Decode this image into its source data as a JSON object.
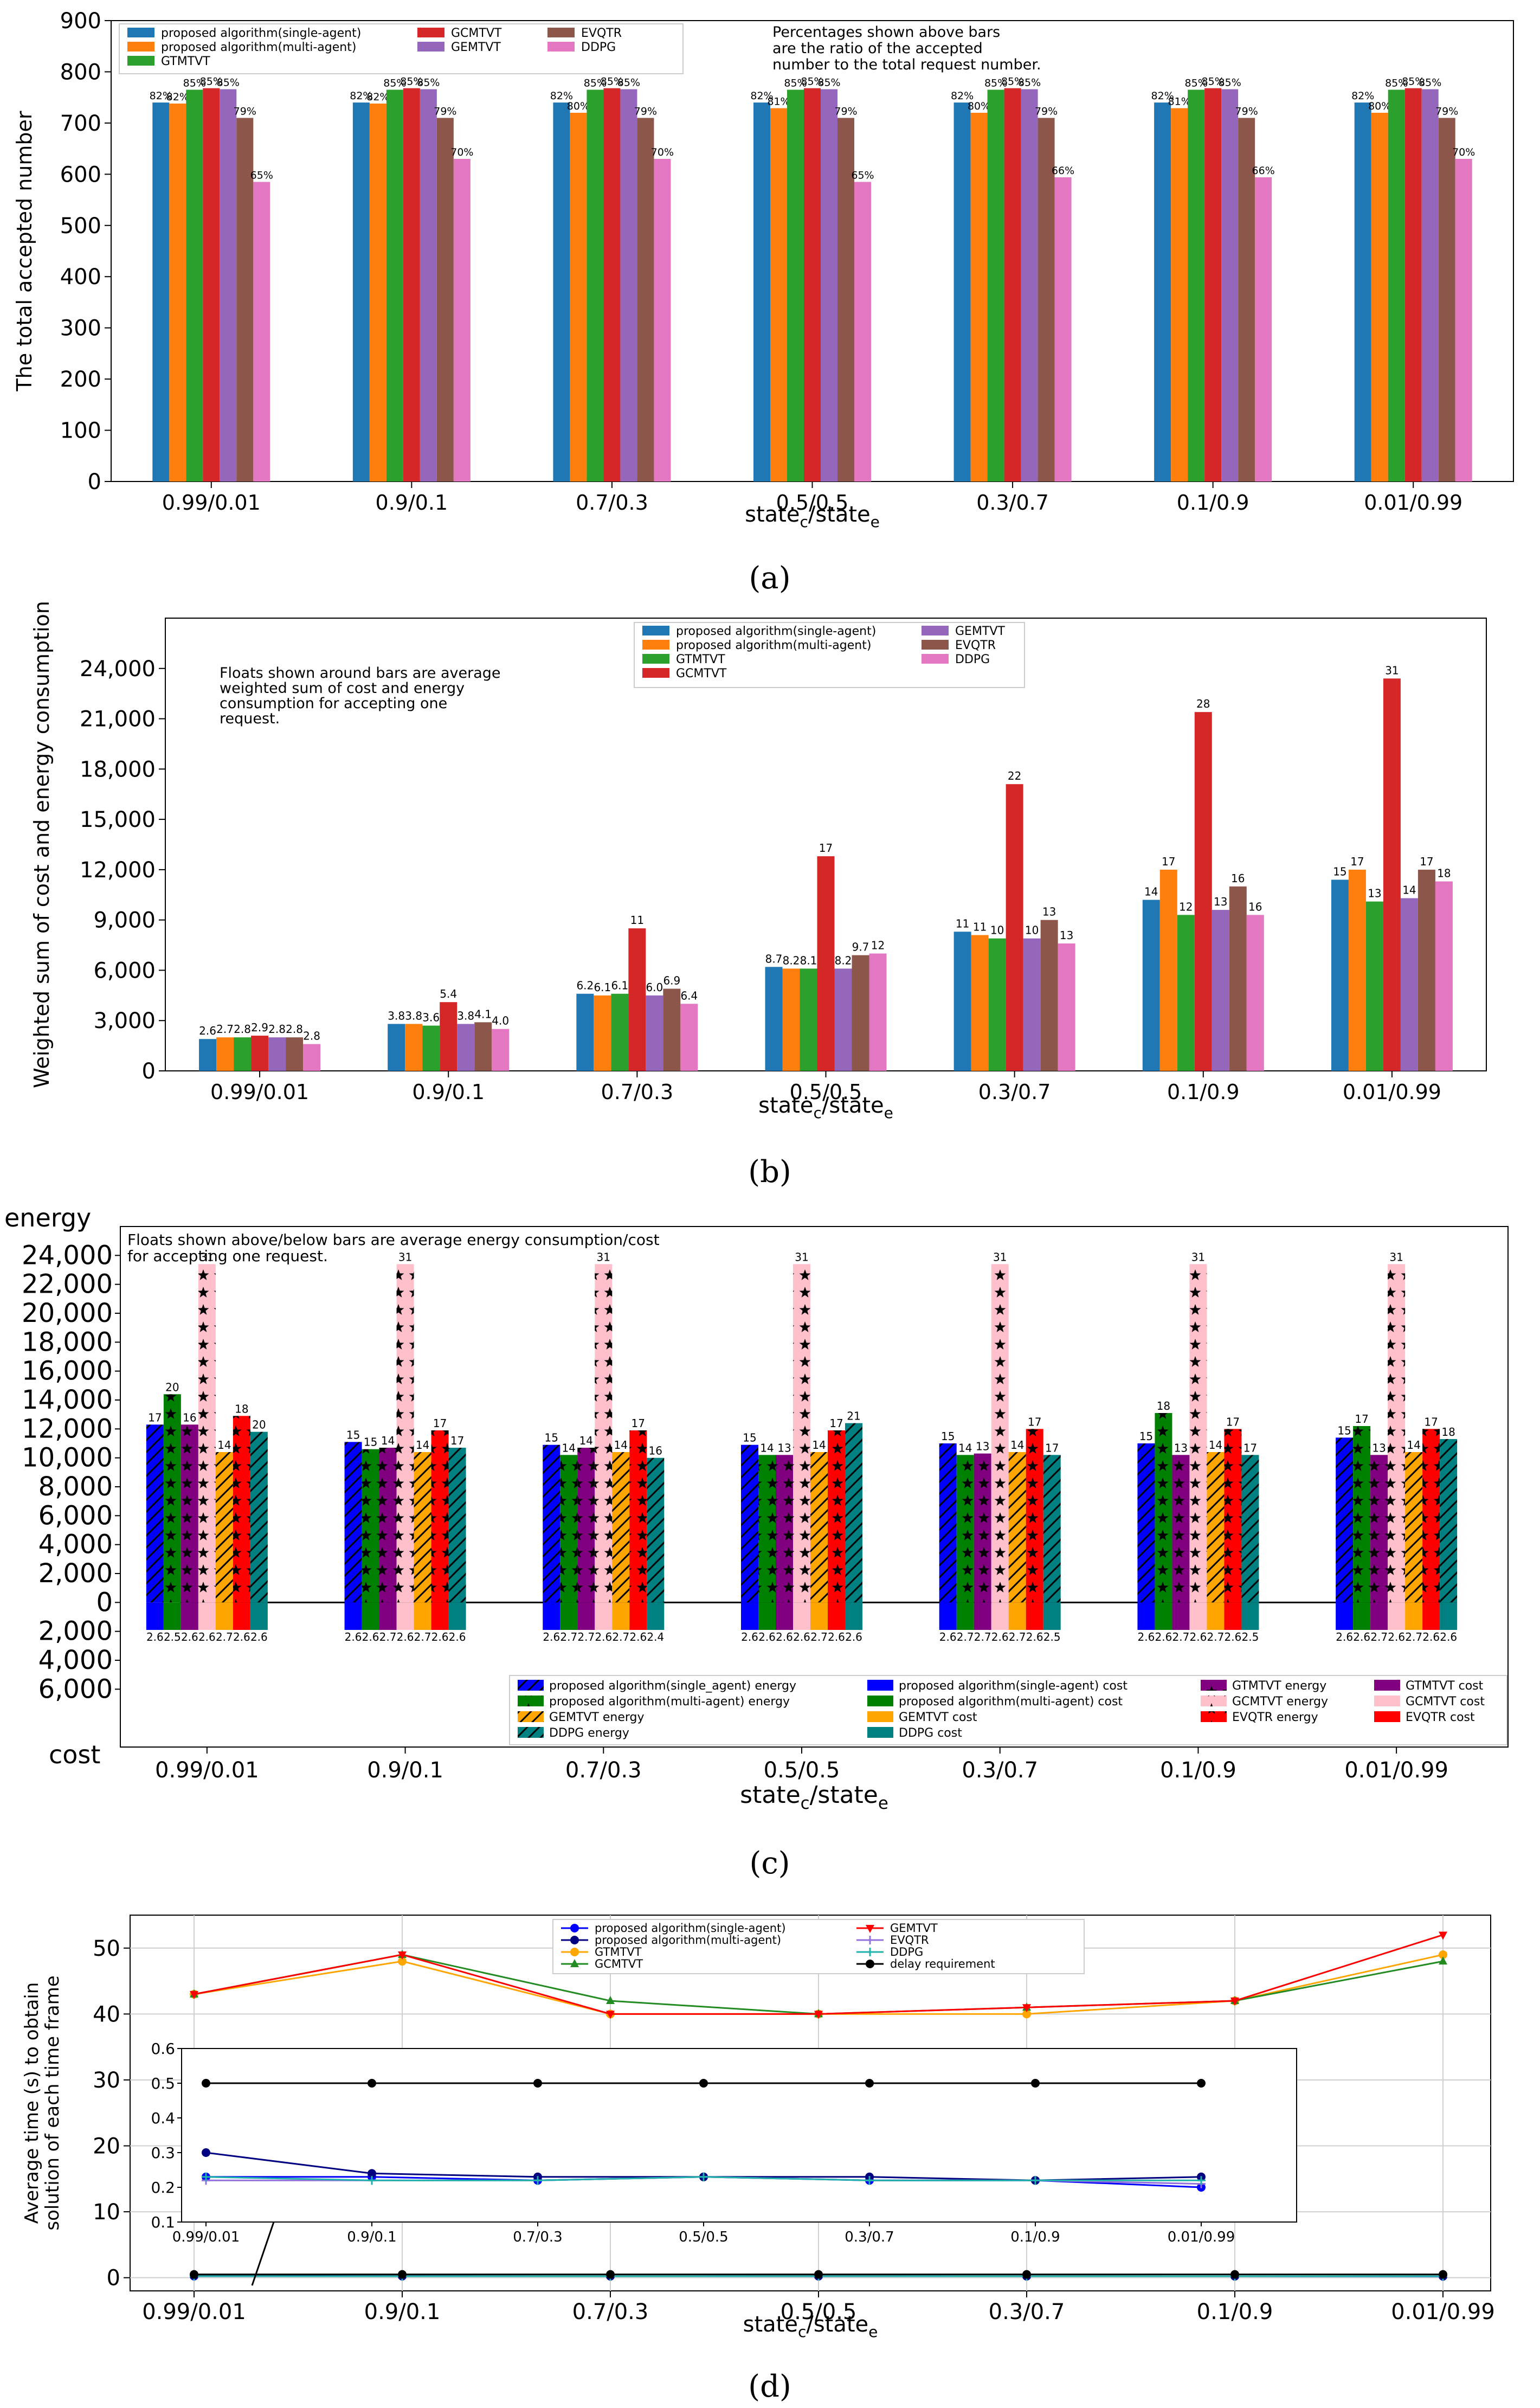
{
  "chart_data": [
    {
      "panel": "(a)",
      "type": "bar",
      "categories": [
        "0.99/0.01",
        "0.9/0.1",
        "0.7/0.3",
        "0.5/0.5",
        "0.3/0.7",
        "0.1/0.9",
        "0.01/0.99"
      ],
      "xlabel_main": "state",
      "xlabel_sub1": "c",
      "xlabel_sep": "/state",
      "xlabel_sub2": "e",
      "ylabel": "The total accepted number",
      "ylim": [
        0,
        900
      ],
      "yticks": [
        0,
        100,
        200,
        300,
        400,
        500,
        600,
        700,
        800,
        900
      ],
      "annotation": [
        "Percentages shown above bars",
        "are the ratio of the accepted",
        "number to the total request number."
      ],
      "series": [
        {
          "name": "proposed algorithm(single-agent)",
          "color": "#1f77b4",
          "values": [
            740,
            740,
            740,
            740,
            740,
            740,
            740
          ],
          "labels": [
            "82%",
            "82%",
            "82%",
            "82%",
            "82%",
            "82%",
            "82%"
          ]
        },
        {
          "name": "proposed algorithm(multi-agent)",
          "color": "#ff7f0e",
          "values": [
            738,
            738,
            720,
            729,
            720,
            729,
            720
          ],
          "labels": [
            "82%",
            "82%",
            "80%",
            "81%",
            "80%",
            "81%",
            "80%"
          ]
        },
        {
          "name": "GTMTVT",
          "color": "#2ca02c",
          "values": [
            765,
            765,
            765,
            765,
            765,
            765,
            765
          ],
          "labels": [
            "85%",
            "85%",
            "85%",
            "85%",
            "85%",
            "85%",
            "85%"
          ]
        },
        {
          "name": "GCMTVT",
          "color": "#d62728",
          "values": [
            768,
            768,
            768,
            768,
            768,
            768,
            768
          ],
          "labels": [
            "85%",
            "85%",
            "85%",
            "85%",
            "85%",
            "85%",
            "85%"
          ]
        },
        {
          "name": "GEMTVT",
          "color": "#9467bd",
          "values": [
            766,
            766,
            766,
            766,
            766,
            766,
            766
          ],
          "labels": [
            "85%",
            "85%",
            "85%",
            "85%",
            "85%",
            "85%",
            "85%"
          ]
        },
        {
          "name": "EVQTR",
          "color": "#8c564b",
          "values": [
            710,
            710,
            710,
            710,
            710,
            710,
            710
          ],
          "labels": [
            "79%",
            "79%",
            "79%",
            "79%",
            "79%",
            "79%",
            "79%"
          ]
        },
        {
          "name": "DDPG",
          "color": "#e377c2",
          "values": [
            585,
            630,
            630,
            585,
            594,
            594,
            630
          ],
          "labels": [
            "65%",
            "70%",
            "70%",
            "65%",
            "66%",
            "66%",
            "70%"
          ]
        }
      ],
      "caption": "(a)"
    },
    {
      "panel": "(b)",
      "type": "bar",
      "categories": [
        "0.99/0.01",
        "0.9/0.1",
        "0.7/0.3",
        "0.5/0.5",
        "0.3/0.7",
        "0.1/0.9",
        "0.01/0.99"
      ],
      "xlabel_main": "state",
      "xlabel_sub1": "c",
      "xlabel_sep": "/state",
      "xlabel_sub2": "e",
      "ylabel": "Weighted sum of cost and energy consumption",
      "ylim": [
        0,
        27000
      ],
      "ytick_values": [
        0,
        3000,
        6000,
        9000,
        12000,
        15000,
        18000,
        21000,
        24000
      ],
      "ytick_labels": [
        "0",
        "3,000",
        "6,000",
        "9,000",
        "12,000",
        "15,000",
        "18,000",
        "21,000",
        "24,000"
      ],
      "annotation": [
        "Floats shown around bars are average",
        "weighted sum of cost and energy",
        "consumption for accepting one",
        "request."
      ],
      "series": [
        {
          "name": "proposed algorithm(single-agent)",
          "color": "#1f77b4",
          "values": [
            1900,
            2800,
            4600,
            6200,
            8300,
            10200,
            11400
          ],
          "labels": [
            "2.6",
            "3.8",
            "6.2",
            "8.7",
            "11",
            "14",
            "15"
          ]
        },
        {
          "name": "proposed algorithm(multi-agent)",
          "color": "#ff7f0e",
          "values": [
            2000,
            2800,
            4500,
            6100,
            8100,
            12000,
            12000
          ],
          "labels": [
            "2.7",
            "3.8",
            "6.1",
            "8.2",
            "11",
            "17",
            "17"
          ]
        },
        {
          "name": "GTMTVT",
          "color": "#2ca02c",
          "values": [
            2000,
            2700,
            4600,
            6100,
            7900,
            9300,
            10100
          ],
          "labels": [
            "2.8",
            "3.6",
            "6.1",
            "8.1",
            "10",
            "12",
            "13"
          ]
        },
        {
          "name": "GCMTVT",
          "color": "#d62728",
          "values": [
            2100,
            4100,
            8500,
            12800,
            17100,
            21400,
            23400
          ],
          "labels": [
            "2.9",
            "5.4",
            "11",
            "17",
            "22",
            "28",
            "31"
          ]
        },
        {
          "name": "GEMTVT",
          "color": "#9467bd",
          "values": [
            2000,
            2800,
            4500,
            6100,
            7900,
            9600,
            10300
          ],
          "labels": [
            "2.8",
            "3.8",
            "6.0",
            "8.2",
            "10",
            "13",
            "14"
          ]
        },
        {
          "name": "EVQTR",
          "color": "#8c564b",
          "values": [
            2000,
            2900,
            4900,
            6900,
            9000,
            11000,
            12000
          ],
          "labels": [
            "2.8",
            "4.1",
            "6.9",
            "9.7",
            "13",
            "16",
            "17"
          ]
        },
        {
          "name": "DDPG",
          "color": "#e377c2",
          "values": [
            1600,
            2500,
            4000,
            7000,
            7600,
            9300,
            11300
          ],
          "labels": [
            "2.8",
            "4.0",
            "6.4",
            "12",
            "13",
            "16",
            "18"
          ]
        }
      ],
      "caption": "(b)"
    },
    {
      "panel": "(c)",
      "type": "bar",
      "categories": [
        "0.99/0.01",
        "0.9/0.1",
        "0.7/0.3",
        "0.5/0.5",
        "0.3/0.7",
        "0.1/0.9",
        "0.01/0.99"
      ],
      "xlabel_main": "state",
      "xlabel_sub1": "c",
      "xlabel_sep": "/state",
      "xlabel_sub2": "e",
      "top_label": "energy",
      "bottom_label": "cost",
      "annotation": [
        "Floats shown above/below bars are average energy consumption/cost",
        "for accepting one request."
      ],
      "ylim": [
        -10000,
        26000
      ],
      "ytick_values": [
        -6000,
        -4000,
        -2000,
        0,
        2000,
        4000,
        6000,
        8000,
        10000,
        12000,
        14000,
        16000,
        18000,
        20000,
        22000,
        24000
      ],
      "ytick_labels": [
        "6,000",
        "4,000",
        "2,000",
        "0",
        "2,000",
        "4,000",
        "6,000",
        "8,000",
        "10,000",
        "12,000",
        "14,000",
        "16,000",
        "18,000",
        "20,000",
        "22,000",
        "24,000"
      ],
      "series": [
        {
          "name": "proposed algorithm(single_agent)",
          "energy_color": "#0000ff",
          "cost_color": "#0000ff",
          "hatch": "diag",
          "energy": [
            12300,
            11100,
            10900,
            10900,
            11000,
            11000,
            11400
          ],
          "energy_labels": [
            "17",
            "15",
            "15",
            "15",
            "15",
            "15",
            "15"
          ],
          "cost": [
            1900,
            1900,
            1900,
            1900,
            1900,
            1900,
            1900
          ],
          "cost_labels": [
            "2.6",
            "2.6",
            "2.6",
            "2.6",
            "2.6",
            "2.6",
            "2.6"
          ]
        },
        {
          "name": "proposed algorithm(multi-agent)",
          "energy_color": "#008000",
          "cost_color": "#008000",
          "hatch": "star",
          "energy": [
            14400,
            10600,
            10200,
            10200,
            10200,
            13100,
            12200
          ],
          "energy_labels": [
            "20",
            "15",
            "14",
            "14",
            "14",
            "18",
            "17"
          ],
          "cost": [
            1900,
            1900,
            1900,
            1900,
            1900,
            1900,
            1900
          ],
          "cost_labels": [
            "2.5",
            "2.6",
            "2.7",
            "2.6",
            "2.7",
            "2.6",
            "2.6"
          ]
        },
        {
          "name": "GTMTVT",
          "energy_color": "#800080",
          "cost_color": "#800080",
          "hatch": "star",
          "energy": [
            12300,
            10700,
            10700,
            10200,
            10300,
            10200,
            10200
          ],
          "energy_labels": [
            "16",
            "14",
            "14",
            "13",
            "13",
            "13",
            "13"
          ],
          "cost": [
            1900,
            1900,
            1900,
            1900,
            1900,
            1900,
            1900
          ],
          "cost_labels": [
            "2.6",
            "2.7",
            "2.7",
            "2.6",
            "2.7",
            "2.7",
            "2.7"
          ]
        },
        {
          "name": "GCMTVT",
          "energy_color": "#ffc0cb",
          "cost_color": "#ffc0cb",
          "hatch": "star",
          "energy": [
            23400,
            23400,
            23400,
            23400,
            23400,
            23400,
            23400
          ],
          "energy_labels": [
            "31",
            "31",
            "31",
            "31",
            "31",
            "31",
            "31"
          ],
          "cost": [
            1900,
            1900,
            1900,
            1900,
            1900,
            1900,
            1900
          ],
          "cost_labels": [
            "2.6",
            "2.6",
            "2.6",
            "2.6",
            "2.6",
            "2.6",
            "2.6"
          ]
        },
        {
          "name": "GEMTVT",
          "energy_color": "#ffa500",
          "cost_color": "#ffa500",
          "hatch": "diag",
          "energy": [
            10400,
            10400,
            10400,
            10400,
            10400,
            10400,
            10400
          ],
          "energy_labels": [
            "14",
            "14",
            "14",
            "14",
            "14",
            "14",
            "14"
          ],
          "cost": [
            1900,
            1900,
            1900,
            1900,
            1900,
            1900,
            1900
          ],
          "cost_labels": [
            "2.7",
            "2.7",
            "2.7",
            "2.7",
            "2.7",
            "2.7",
            "2.7"
          ]
        },
        {
          "name": "EVQTR",
          "energy_color": "#ff0000",
          "cost_color": "#ff0000",
          "hatch": "star",
          "energy": [
            12900,
            11900,
            11900,
            11900,
            12000,
            12000,
            12000
          ],
          "energy_labels": [
            "18",
            "17",
            "17",
            "17",
            "17",
            "17",
            "17"
          ],
          "cost": [
            1900,
            1900,
            1900,
            1900,
            1900,
            1900,
            1900
          ],
          "cost_labels": [
            "2.6",
            "2.6",
            "2.6",
            "2.6",
            "2.6",
            "2.6",
            "2.6"
          ]
        },
        {
          "name": "DDPG",
          "energy_color": "#008080",
          "cost_color": "#008080",
          "hatch": "diag",
          "energy": [
            11800,
            10700,
            10000,
            12400,
            10200,
            10200,
            11300
          ],
          "energy_labels": [
            "20",
            "17",
            "16",
            "21",
            "17",
            "17",
            "18"
          ],
          "cost": [
            1900,
            1900,
            1900,
            1900,
            1900,
            1900,
            1900
          ],
          "cost_labels": [
            "2.6",
            "2.6",
            "2.4",
            "2.6",
            "2.5",
            "2.5",
            "2.6"
          ]
        }
      ],
      "legend": [
        [
          "proposed algorithm(single_agent) energy",
          "proposed algorithm(multi-agent) energy",
          "GEMTVT energy",
          "DDPG energy"
        ],
        [
          "proposed algorithm(single-agent) cost",
          "proposed algorithm(multi-agent) cost",
          "GEMTVT cost",
          "DDPG cost"
        ],
        [
          "GTMTVT energy",
          "GCMTVT energy",
          "EVQTR energy"
        ],
        [
          "GTMTVT cost",
          "GCMTVT cost",
          "EVQTR cost"
        ]
      ],
      "caption": "(c)"
    },
    {
      "panel": "(d)",
      "type": "line",
      "categories": [
        "0.99/0.01",
        "0.9/0.1",
        "0.7/0.3",
        "0.5/0.5",
        "0.3/0.7",
        "0.1/0.9",
        "0.01/0.99"
      ],
      "xlabel_main": "state",
      "xlabel_sub1": "c",
      "xlabel_sep": "/state",
      "xlabel_sub2": "e",
      "ylabel_line1": "Average time (s) to obtain",
      "ylabel_line2": "solution of each time frame",
      "ylim": [
        -2,
        55
      ],
      "yticks": [
        0,
        10,
        20,
        30,
        40,
        50
      ],
      "series": [
        {
          "name": "proposed algorithm(single-agent)",
          "color": "#0000ff",
          "marker": "circle",
          "values": [
            0.23,
            0.23,
            0.22,
            0.23,
            0.22,
            0.22,
            0.2
          ]
        },
        {
          "name": "proposed algorithm(multi-agent)",
          "color": "#000080",
          "marker": "circle",
          "values": [
            0.3,
            0.24,
            0.23,
            0.23,
            0.23,
            0.22,
            0.23
          ]
        },
        {
          "name": "GTMTVT",
          "color": "#ffa500",
          "marker": "circle",
          "values": [
            43,
            48,
            40,
            40,
            40,
            42,
            49
          ]
        },
        {
          "name": "GCMTVT",
          "color": "#228b22",
          "marker": "triangle",
          "values": [
            43,
            49,
            42,
            40,
            41,
            42,
            48
          ]
        },
        {
          "name": "GEMTVT",
          "color": "#ff0000",
          "marker": "triangle-down",
          "values": [
            43,
            49,
            40,
            40,
            41,
            42,
            52
          ]
        },
        {
          "name": "EVQTR",
          "color": "#9370db",
          "marker": "plus",
          "values": [
            0.22,
            0.22,
            0.22,
            0.23,
            0.22,
            0.22,
            0.21
          ]
        },
        {
          "name": "DDPG",
          "color": "#20b2aa",
          "marker": "plus",
          "values": [
            0.23,
            0.22,
            0.22,
            0.23,
            0.22,
            0.22,
            0.22
          ]
        },
        {
          "name": "delay requirement",
          "color": "#000000",
          "marker": "circle",
          "values": [
            0.5,
            0.5,
            0.5,
            0.5,
            0.5,
            0.5,
            0.5
          ]
        }
      ],
      "inset": {
        "ylim": [
          0.1,
          0.6
        ],
        "yticks": [
          0.1,
          0.2,
          0.3,
          0.4,
          0.5,
          0.6
        ],
        "ytick_labels": [
          "0.1",
          "0.2",
          "0.3",
          "0.4",
          "0.5",
          "0.6"
        ]
      },
      "caption": "(d)"
    }
  ]
}
